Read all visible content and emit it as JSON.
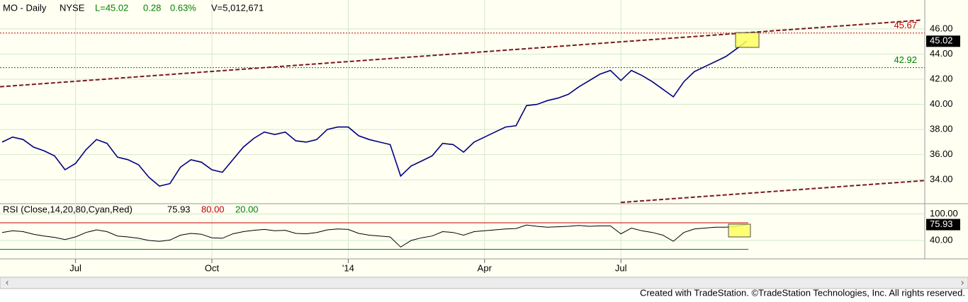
{
  "header": {
    "symbol": "MO - Daily",
    "exchange": "NYSE",
    "last": "L=45.02",
    "change": "0.28",
    "change_pct": "0.63%",
    "volume": "V=5,012,671"
  },
  "chart_data": [
    {
      "type": "line",
      "color": "#000080",
      "values": [
        37.0,
        37.4,
        37.2,
        36.6,
        36.3,
        35.9,
        34.8,
        35.3,
        36.4,
        37.2,
        36.9,
        35.8,
        35.6,
        35.2,
        34.2,
        33.5,
        33.7,
        35.0,
        35.6,
        35.4,
        34.8,
        34.6,
        35.6,
        36.6,
        37.3,
        37.8,
        37.6,
        37.8,
        37.1,
        37.0,
        37.2,
        38.0,
        38.2,
        38.2,
        37.5,
        37.2,
        37.0,
        36.8,
        34.3,
        35.1,
        35.5,
        35.9,
        36.9,
        36.8,
        36.2,
        37.0,
        37.4,
        37.8,
        38.2,
        38.3,
        39.9,
        40.0,
        40.3,
        40.5,
        40.8,
        41.4,
        41.9,
        42.4,
        42.7,
        41.9,
        42.7,
        42.3,
        41.8,
        41.2,
        40.6,
        41.8,
        42.6,
        43.0,
        43.4,
        43.8,
        44.4,
        45.02
      ],
      "ylim": [
        32.1,
        48.3
      ],
      "yticks": [
        {
          "value": 34,
          "label": "34.00"
        },
        {
          "value": 36,
          "label": "36.00"
        },
        {
          "value": 38,
          "label": "38.00"
        },
        {
          "value": 40,
          "label": "40.00"
        },
        {
          "value": 42,
          "label": "42.00"
        },
        {
          "value": 44,
          "label": "44.00"
        },
        {
          "value": 46,
          "label": "46.00"
        }
      ],
      "grid": true,
      "ref_lines": [
        {
          "value": 45.67,
          "color": "#c00000"
        },
        {
          "value": 42.92,
          "color": "#008000"
        }
      ],
      "trendlines": [
        {
          "values": [
            41.4,
            46.7
          ],
          "color": "#7a1a1a"
        },
        {
          "values": [
            32.2,
            33.94
          ],
          "color": "#7a1a1a"
        }
      ]
    },
    {
      "type": "line",
      "title": "RSI (Close,14,20,80,Cyan,Red)",
      "color": "#000000",
      "categories": [
        null,
        null,
        null,
        null,
        null,
        null,
        null,
        "Jul",
        null,
        null,
        null,
        null,
        null,
        null,
        null,
        null,
        null,
        null,
        null,
        null,
        "Oct",
        null,
        null,
        null,
        null,
        null,
        null,
        null,
        null,
        null,
        null,
        null,
        null,
        "'14",
        null,
        null,
        null,
        null,
        null,
        null,
        null,
        null,
        null,
        null,
        null,
        null,
        "Apr",
        null,
        null,
        null,
        null,
        null,
        null,
        null,
        null,
        null,
        null,
        null,
        null,
        "Jul",
        null,
        null,
        null,
        null,
        null,
        null,
        null,
        null,
        null,
        null,
        null,
        null
      ],
      "values": [
        58,
        62,
        60,
        54,
        50,
        47,
        42,
        48,
        58,
        64,
        60,
        50,
        48,
        45,
        40,
        38,
        41,
        52,
        56,
        54,
        46,
        45,
        55,
        60,
        63,
        65,
        62,
        63,
        56,
        55,
        58,
        64,
        66,
        65,
        56,
        52,
        50,
        48,
        25,
        40,
        46,
        50,
        60,
        58,
        52,
        60,
        62,
        64,
        66,
        67,
        75,
        72,
        70,
        71,
        72,
        74,
        72,
        73,
        73,
        55,
        68,
        62,
        58,
        52,
        38,
        58,
        66,
        68,
        70,
        70,
        72,
        75.93
      ],
      "ylim": [
        -1.7,
        123.3
      ],
      "yticks": [
        {
          "value": 100,
          "label": "100.00"
        },
        {
          "value": 40,
          "label": "40.00"
        }
      ],
      "levels": [
        {
          "value": 80,
          "label": "80.00",
          "color": "#c00000"
        },
        {
          "value": 20,
          "label": "20.00",
          "color": "#008000"
        }
      ]
    }
  ],
  "footer": "Created with TradeStation. ©TradeStation Technologies, Inc. All rights reserved."
}
